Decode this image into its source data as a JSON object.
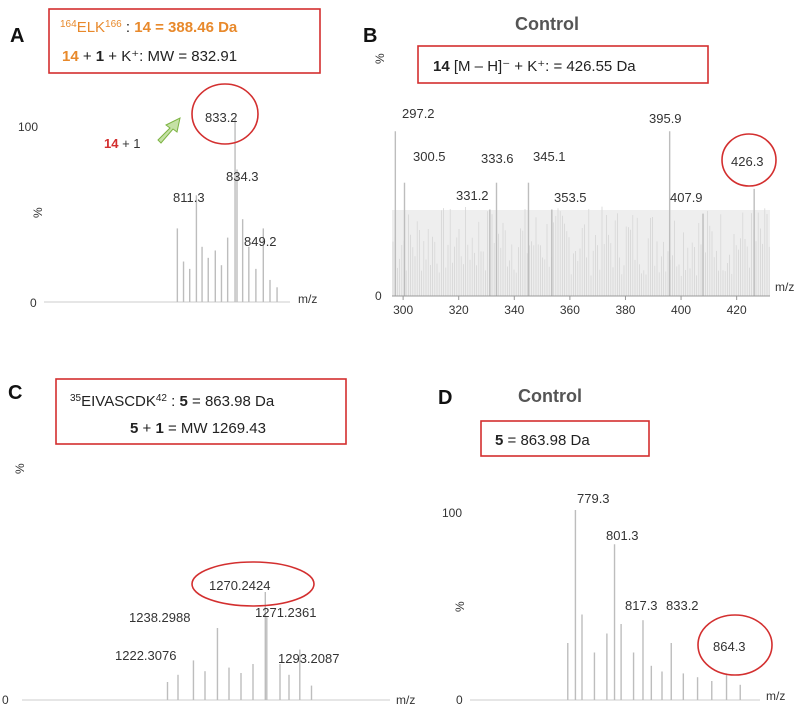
{
  "colors": {
    "orange": "#e8892b",
    "red": "#d32f2f",
    "peak": "#bdbdbd",
    "arrow": "#9ccc65"
  },
  "chart_data": [
    {
      "panel": "A",
      "type": "bar",
      "title": "",
      "xlabel": "m/z",
      "ylabel": "%",
      "ylim": [
        0,
        100
      ],
      "yticks": [
        "0",
        "100"
      ],
      "box": {
        "line1": {
          "sup1": "164",
          "seq": "ELK",
          "sup2": "166",
          "sep": " : ",
          "num": "14",
          "eq": " = 388.46 Da"
        },
        "line2": {
          "num": "14",
          "plus": " + ",
          "one": "1",
          "rest": " + K⁺:  MW = 832.91"
        }
      },
      "annotation": {
        "num": "14",
        "rest": " + 1"
      },
      "labels": [
        "833.2",
        "811.3",
        "834.3",
        "849.2"
      ],
      "peaks": [
        {
          "x": 800.5,
          "y": 40
        },
        {
          "x": 804.0,
          "y": 22
        },
        {
          "x": 807.5,
          "y": 18
        },
        {
          "x": 811.3,
          "y": 58
        },
        {
          "x": 814.5,
          "y": 30
        },
        {
          "x": 818.0,
          "y": 24
        },
        {
          "x": 822.0,
          "y": 28
        },
        {
          "x": 825.5,
          "y": 20
        },
        {
          "x": 829.0,
          "y": 35
        },
        {
          "x": 833.2,
          "y": 100
        },
        {
          "x": 834.3,
          "y": 72
        },
        {
          "x": 837.5,
          "y": 45
        },
        {
          "x": 841.0,
          "y": 30
        },
        {
          "x": 845.0,
          "y": 18
        },
        {
          "x": 849.2,
          "y": 40
        },
        {
          "x": 853.0,
          "y": 12
        },
        {
          "x": 857.0,
          "y": 8
        }
      ],
      "xlim": [
        785,
        870
      ]
    },
    {
      "panel": "B",
      "type": "bar",
      "title": "Control",
      "xlabel": "m/z",
      "ylabel": "%",
      "ylim": [
        0,
        100
      ],
      "yticks": [
        "0"
      ],
      "xticks": [
        "300",
        "320",
        "340",
        "360",
        "380",
        "400",
        "420"
      ],
      "xlim": [
        296,
        432
      ],
      "box": {
        "num": "14",
        "rest": " [M – H]⁻ + K⁺: = 426.55 Da"
      },
      "labels": [
        "297.2",
        "300.5",
        "331.2",
        "333.6",
        "345.1",
        "353.5",
        "395.9",
        "407.9",
        "426.3"
      ],
      "peaks": [
        {
          "x": 297.2,
          "y": 80
        },
        {
          "x": 300.5,
          "y": 55
        },
        {
          "x": 331.2,
          "y": 42
        },
        {
          "x": 333.6,
          "y": 55
        },
        {
          "x": 345.1,
          "y": 55
        },
        {
          "x": 353.5,
          "y": 42
        },
        {
          "x": 395.9,
          "y": 80
        },
        {
          "x": 407.9,
          "y": 40
        },
        {
          "x": 426.3,
          "y": 52
        }
      ]
    },
    {
      "panel": "C",
      "type": "bar",
      "title": "",
      "xlabel": "m/z",
      "ylabel": "%",
      "ylim": [
        0,
        100
      ],
      "yticks": [
        "0"
      ],
      "xlim": [
        1120,
        1360
      ],
      "box": {
        "line1": {
          "sup1": "35",
          "seq": "EIVASCDK",
          "sup2": "42",
          "sep": " : ",
          "num": "5",
          "eq": " = 863.98 Da"
        },
        "line2": {
          "num": "5",
          "plus": " + ",
          "one": "1",
          "rest": " = MW 1269.43"
        }
      },
      "labels": [
        "1270.2424",
        "1238.2988",
        "1271.2361",
        "1222.3076",
        "1293.2087"
      ],
      "peaks": [
        {
          "x": 1205.0,
          "y": 10
        },
        {
          "x": 1212.0,
          "y": 14
        },
        {
          "x": 1222.3,
          "y": 22
        },
        {
          "x": 1230.0,
          "y": 16
        },
        {
          "x": 1238.3,
          "y": 40
        },
        {
          "x": 1246.0,
          "y": 18
        },
        {
          "x": 1254.0,
          "y": 15
        },
        {
          "x": 1262.0,
          "y": 20
        },
        {
          "x": 1270.2,
          "y": 60
        },
        {
          "x": 1271.2,
          "y": 46
        },
        {
          "x": 1280.0,
          "y": 20
        },
        {
          "x": 1286.0,
          "y": 14
        },
        {
          "x": 1293.2,
          "y": 28
        },
        {
          "x": 1301.0,
          "y": 8
        }
      ]
    },
    {
      "panel": "D",
      "type": "bar",
      "title": "Control",
      "xlabel": "m/z",
      "ylabel": "%",
      "ylim": [
        0,
        100
      ],
      "yticks": [
        "0",
        "100"
      ],
      "xlim": [
        720,
        900
      ],
      "box": {
        "num": "5",
        "rest": " = 863.98 Da"
      },
      "labels": [
        "779.3",
        "801.3",
        "817.3",
        "833.2",
        "864.3"
      ],
      "peaks": [
        {
          "x": 775.0,
          "y": 30
        },
        {
          "x": 779.3,
          "y": 100
        },
        {
          "x": 783.0,
          "y": 45
        },
        {
          "x": 790.0,
          "y": 25
        },
        {
          "x": 797.0,
          "y": 35
        },
        {
          "x": 801.3,
          "y": 82
        },
        {
          "x": 805.0,
          "y": 40
        },
        {
          "x": 812.0,
          "y": 25
        },
        {
          "x": 817.3,
          "y": 42
        },
        {
          "x": 822.0,
          "y": 18
        },
        {
          "x": 828.0,
          "y": 15
        },
        {
          "x": 833.2,
          "y": 30
        },
        {
          "x": 840.0,
          "y": 14
        },
        {
          "x": 848.0,
          "y": 12
        },
        {
          "x": 856.0,
          "y": 10
        },
        {
          "x": 864.3,
          "y": 14
        },
        {
          "x": 872.0,
          "y": 8
        }
      ]
    }
  ]
}
